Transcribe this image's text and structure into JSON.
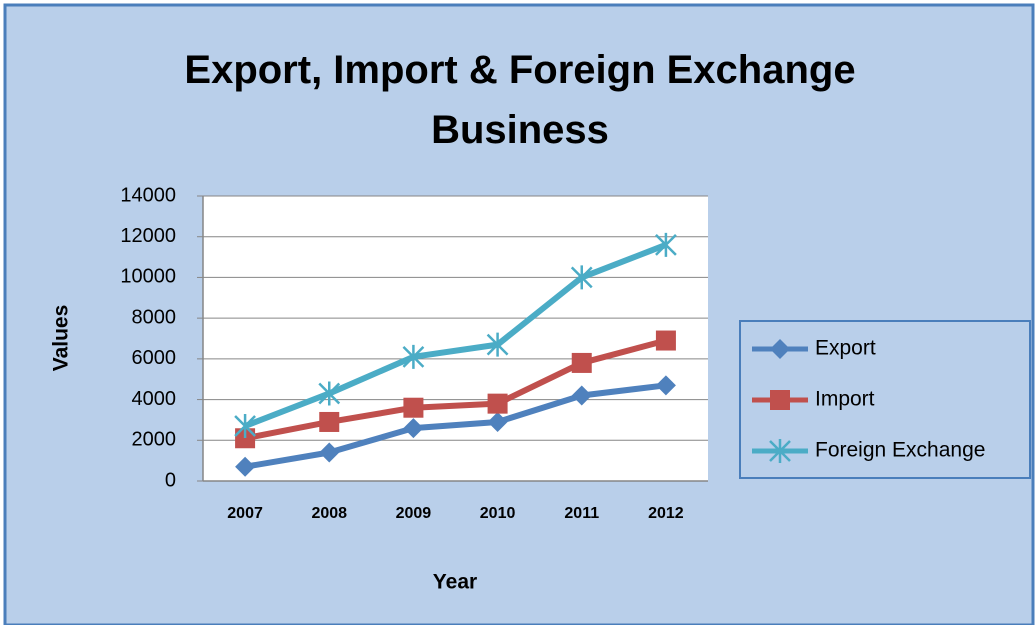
{
  "chart_data": {
    "type": "line",
    "title": "Export, Import & Foreign Exchange Business",
    "x_label": "Year",
    "y_label": "Values",
    "categories": [
      "2007",
      "2008",
      "2009",
      "2010",
      "2011",
      "2012"
    ],
    "series": [
      {
        "name": "Export",
        "color": "#4f81bd",
        "marker": "diamond",
        "values": [
          700,
          1400,
          2600,
          2900,
          4200,
          4700
        ]
      },
      {
        "name": "Import",
        "color": "#c0504d",
        "marker": "square",
        "values": [
          2100,
          2900,
          3600,
          3800,
          5800,
          6900
        ]
      },
      {
        "name": "Foreign Exchange",
        "color": "#4bacc6",
        "marker": "star",
        "values": [
          2700,
          4300,
          6100,
          6700,
          10000,
          11600
        ]
      }
    ],
    "ylim": [
      0,
      14000
    ],
    "yticks": [
      0,
      2000,
      4000,
      6000,
      8000,
      10000,
      12000,
      14000
    ],
    "grid": true,
    "legend": "right"
  }
}
